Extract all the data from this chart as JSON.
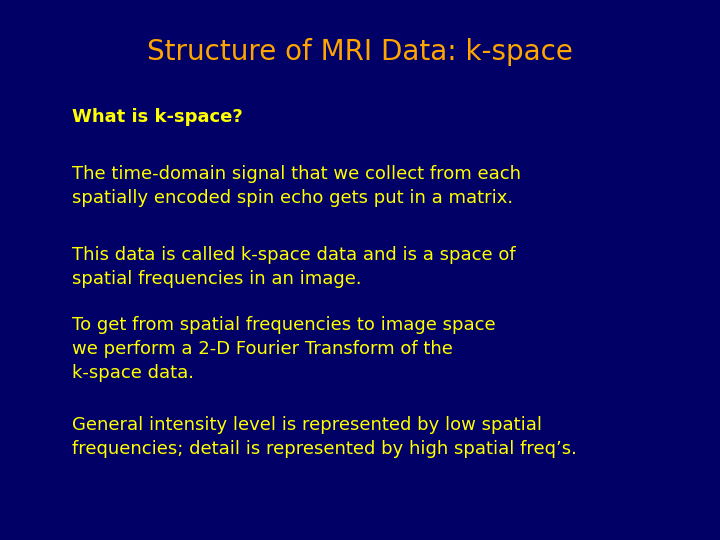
{
  "title": "Structure of MRI Data: k-space",
  "title_color": "#FFA500",
  "title_fontsize": 20,
  "background_color": "#000066",
  "text_color": "#FFFF00",
  "subtitle": "What is k-space?",
  "subtitle_fontsize": 13,
  "paragraphs": [
    "The time-domain signal that we collect from each\nspatially encoded spin echo gets put in a matrix.",
    "This data is called k-space data and is a space of\nspatial frequencies in an image.",
    "To get from spatial frequencies to image space\nwe perform a 2-D Fourier Transform of the\nk-space data.",
    "General intensity level is represented by low spatial\nfrequencies; detail is represented by high spatial freq’s."
  ],
  "para_fontsize": 13,
  "figsize": [
    7.2,
    5.4
  ],
  "dpi": 100
}
